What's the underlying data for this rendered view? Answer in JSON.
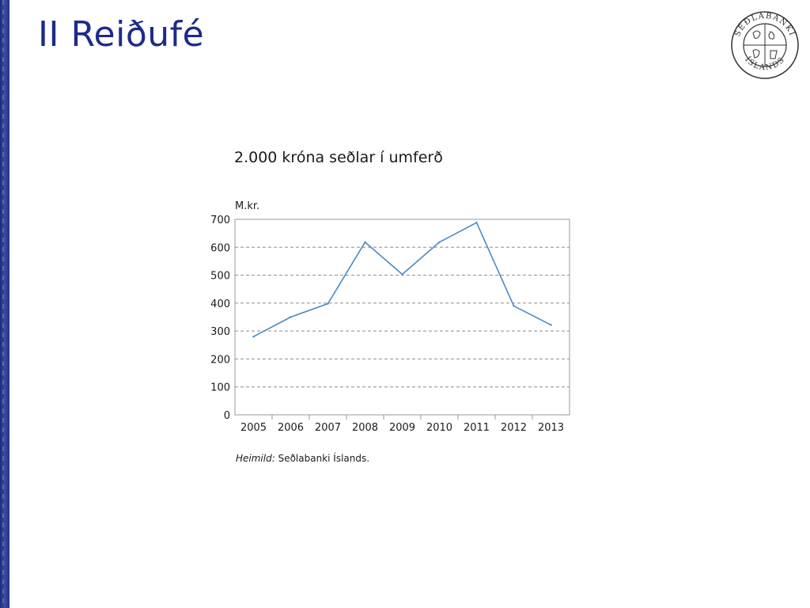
{
  "slide": {
    "title": "II Reiðufé"
  },
  "logo": {
    "icon": "sedlabanki-seal-icon",
    "text_top": "SEÐLABANKI",
    "text_bottom": "ÍSLANDS",
    "color": "#333333"
  },
  "source": {
    "label": "Heimild:",
    "text": "Seðlabanki Íslands."
  },
  "chart_data": {
    "type": "line",
    "title": "2.000 króna seðlar í umferð",
    "ylabel": "M.kr.",
    "xlabel": "",
    "categories": [
      "2005",
      "2006",
      "2007",
      "2008",
      "2009",
      "2010",
      "2011",
      "2012",
      "2013"
    ],
    "series": [
      {
        "values": [
          280,
          350,
          398,
          618,
          503,
          618,
          688,
          390,
          322
        ],
        "color": "#4a8ac4"
      }
    ],
    "ylim": [
      0,
      700
    ],
    "yticks": [
      "0",
      "100",
      "200",
      "300",
      "400",
      "500",
      "600",
      "700"
    ],
    "grid": "horizontal dashed",
    "legend": "none"
  }
}
